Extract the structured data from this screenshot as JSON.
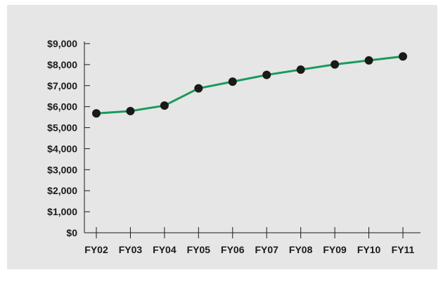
{
  "colors": {
    "background": "#e6e6e6",
    "line": "#1a9a5c",
    "marker": "#1a1a1a",
    "axis": "#1a1a1a"
  },
  "chart_data": {
    "type": "line",
    "title": "",
    "xlabel": "",
    "ylabel": "",
    "categories": [
      "FY02",
      "FY03",
      "FY04",
      "FY05",
      "FY06",
      "FY07",
      "FY08",
      "FY09",
      "FY10",
      "FY11"
    ],
    "series": [
      {
        "values": [
          5680,
          5790,
          6050,
          6870,
          7190,
          7510,
          7760,
          8010,
          8200,
          8390
        ]
      }
    ],
    "ylim": [
      0,
      9000
    ],
    "y_ticks": [
      0,
      1000,
      2000,
      3000,
      4000,
      5000,
      6000,
      7000,
      8000,
      9000
    ],
    "y_tick_labels": [
      "$0",
      "$1,000",
      "$2,000",
      "$3,000",
      "$4,000",
      "$5,000",
      "$6,000",
      "$7,000",
      "$8,000",
      "$9,000"
    ],
    "grid": false,
    "legend": "none",
    "markers": "filled-circle"
  }
}
